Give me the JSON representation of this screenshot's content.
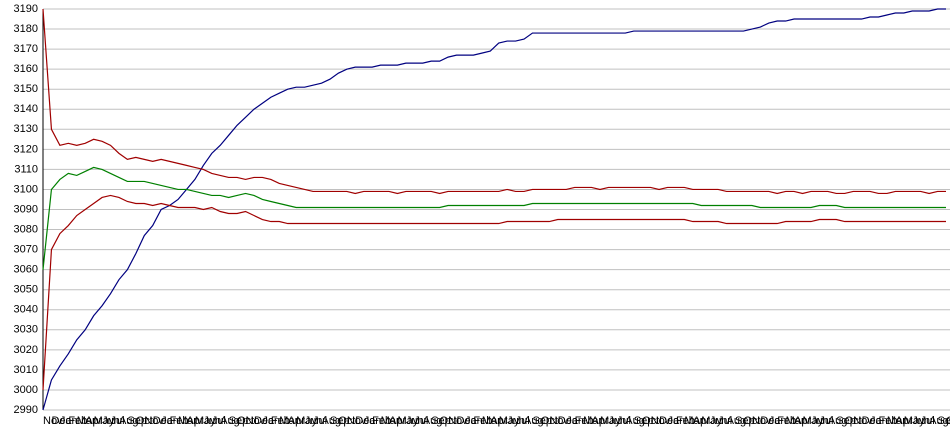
{
  "chart_data": {
    "type": "line",
    "categories": [
      "Nov",
      "Dec",
      "Jan",
      "Feb",
      "Mar",
      "Apr",
      "May",
      "Jun",
      "Jul",
      "Aug",
      "Sep",
      "Oct",
      "Nov",
      "Dec",
      "Jan",
      "Feb",
      "Mar",
      "Apr",
      "May",
      "Jun",
      "Jul",
      "Aug",
      "Sep",
      "Oct",
      "Nov",
      "Dec",
      "Jan",
      "Feb",
      "Mar",
      "Apr",
      "May",
      "Jun",
      "Jul",
      "Aug",
      "Sep",
      "Oct",
      "Nov",
      "Dec",
      "Jan",
      "Feb",
      "Mar",
      "Apr",
      "May",
      "Jun",
      "Jul",
      "Aug",
      "Sep",
      "Oct",
      "Nov",
      "Dec",
      "Jan",
      "Feb",
      "Mar",
      "Apr",
      "May",
      "Jun",
      "Jul",
      "Aug",
      "Sep",
      "Oct",
      "Nov",
      "Dec",
      "Jan",
      "Feb",
      "Mar",
      "Apr",
      "May",
      "Jun",
      "Jul",
      "Aug",
      "Sep",
      "Oct",
      "Nov",
      "Dec",
      "Jan",
      "Feb",
      "Mar",
      "Apr",
      "May",
      "Jun",
      "Jul",
      "Aug",
      "Sep",
      "Oct",
      "Nov",
      "Dec",
      "Jan",
      "Feb",
      "Mar",
      "Apr",
      "May",
      "Jun",
      "Jul",
      "Aug",
      "Sep",
      "Oct",
      "Nov",
      "Dec",
      "Jan",
      "Feb",
      "Mar",
      "Apr",
      "May",
      "Jun",
      "Jul",
      "Aug",
      "Sep",
      "Oct"
    ],
    "series": [
      {
        "color": "#000080",
        "values": [
          2990,
          3005,
          3012,
          3018,
          3025,
          3030,
          3037,
          3042,
          3048,
          3055,
          3060,
          3068,
          3077,
          3082,
          3090,
          3092,
          3095,
          3100,
          3105,
          3112,
          3118,
          3122,
          3127,
          3132,
          3136,
          3140,
          3143,
          3146,
          3148,
          3150,
          3151,
          3151,
          3152,
          3153,
          3155,
          3158,
          3160,
          3161,
          3161,
          3161,
          3162,
          3162,
          3162,
          3163,
          3163,
          3163,
          3164,
          3164,
          3166,
          3167,
          3167,
          3167,
          3168,
          3169,
          3173,
          3174,
          3174,
          3175,
          3178,
          3178,
          3178,
          3178,
          3178,
          3178,
          3178,
          3178,
          3178,
          3178,
          3178,
          3178,
          3179,
          3179,
          3179,
          3179,
          3179,
          3179,
          3179,
          3179,
          3179,
          3179,
          3179,
          3179,
          3179,
          3179,
          3180,
          3181,
          3183,
          3184,
          3184,
          3185,
          3185,
          3185,
          3185,
          3185,
          3185,
          3185,
          3185,
          3185,
          3186,
          3186,
          3187,
          3188,
          3188,
          3189,
          3189,
          3189,
          3190,
          3190
        ]
      },
      {
        "color": "#a00000",
        "values": [
          3190,
          3130,
          3122,
          3123,
          3122,
          3123,
          3125,
          3124,
          3122,
          3118,
          3115,
          3116,
          3115,
          3114,
          3115,
          3114,
          3113,
          3112,
          3111,
          3110,
          3108,
          3107,
          3106,
          3106,
          3105,
          3106,
          3106,
          3105,
          3103,
          3102,
          3101,
          3100,
          3099,
          3099,
          3099,
          3099,
          3099,
          3098,
          3099,
          3099,
          3099,
          3099,
          3098,
          3099,
          3099,
          3099,
          3099,
          3098,
          3099,
          3099,
          3099,
          3099,
          3099,
          3099,
          3099,
          3100,
          3099,
          3099,
          3100,
          3100,
          3100,
          3100,
          3100,
          3101,
          3101,
          3101,
          3100,
          3101,
          3101,
          3101,
          3101,
          3101,
          3101,
          3100,
          3101,
          3101,
          3101,
          3100,
          3100,
          3100,
          3100,
          3099,
          3099,
          3099,
          3099,
          3099,
          3099,
          3098,
          3099,
          3099,
          3098,
          3099,
          3099,
          3099,
          3098,
          3098,
          3099,
          3099,
          3099,
          3098,
          3098,
          3099,
          3099,
          3099,
          3099,
          3098,
          3099,
          3099
        ]
      },
      {
        "color": "#008000",
        "values": [
          3060,
          3100,
          3105,
          3108,
          3107,
          3109,
          3111,
          3110,
          3108,
          3106,
          3104,
          3104,
          3104,
          3103,
          3102,
          3101,
          3100,
          3100,
          3099,
          3098,
          3097,
          3097,
          3096,
          3097,
          3098,
          3097,
          3095,
          3094,
          3093,
          3092,
          3091,
          3091,
          3091,
          3091,
          3091,
          3091,
          3091,
          3091,
          3091,
          3091,
          3091,
          3091,
          3091,
          3091,
          3091,
          3091,
          3091,
          3091,
          3092,
          3092,
          3092,
          3092,
          3092,
          3092,
          3092,
          3092,
          3092,
          3092,
          3093,
          3093,
          3093,
          3093,
          3093,
          3093,
          3093,
          3093,
          3093,
          3093,
          3093,
          3093,
          3093,
          3093,
          3093,
          3093,
          3093,
          3093,
          3093,
          3093,
          3092,
          3092,
          3092,
          3092,
          3092,
          3092,
          3092,
          3091,
          3091,
          3091,
          3091,
          3091,
          3091,
          3091,
          3092,
          3092,
          3092,
          3091,
          3091,
          3091,
          3091,
          3091,
          3091,
          3091,
          3091,
          3091,
          3091,
          3091,
          3091,
          3091
        ]
      },
      {
        "color": "#a00000",
        "values": [
          3000,
          3070,
          3078,
          3082,
          3087,
          3090,
          3093,
          3096,
          3097,
          3096,
          3094,
          3093,
          3093,
          3092,
          3093,
          3092,
          3091,
          3091,
          3091,
          3090,
          3091,
          3089,
          3088,
          3088,
          3089,
          3087,
          3085,
          3084,
          3084,
          3083,
          3083,
          3083,
          3083,
          3083,
          3083,
          3083,
          3083,
          3083,
          3083,
          3083,
          3083,
          3083,
          3083,
          3083,
          3083,
          3083,
          3083,
          3083,
          3083,
          3083,
          3083,
          3083,
          3083,
          3083,
          3083,
          3084,
          3084,
          3084,
          3084,
          3084,
          3084,
          3085,
          3085,
          3085,
          3085,
          3085,
          3085,
          3085,
          3085,
          3085,
          3085,
          3085,
          3085,
          3085,
          3085,
          3085,
          3085,
          3084,
          3084,
          3084,
          3084,
          3083,
          3083,
          3083,
          3083,
          3083,
          3083,
          3083,
          3084,
          3084,
          3084,
          3084,
          3085,
          3085,
          3085,
          3084,
          3084,
          3084,
          3084,
          3084,
          3084,
          3084,
          3084,
          3084,
          3084,
          3084,
          3084,
          3084
        ]
      }
    ],
    "ylim": [
      2990,
      3190
    ],
    "yticks": [
      2990,
      3000,
      3010,
      3020,
      3030,
      3040,
      3050,
      3060,
      3070,
      3080,
      3090,
      3100,
      3110,
      3120,
      3130,
      3140,
      3150,
      3160,
      3170,
      3180,
      3190
    ],
    "grid": true
  }
}
